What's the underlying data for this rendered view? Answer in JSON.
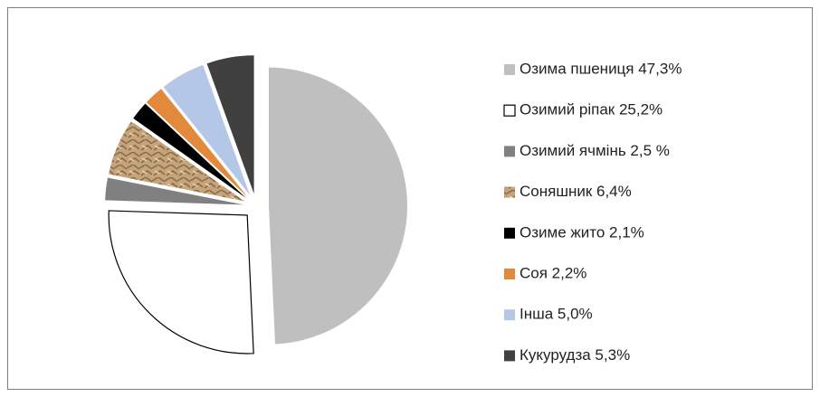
{
  "chart_data": {
    "type": "pie",
    "categories": [
      "Озима пшениця  47,3%",
      "Озимий ріпак  25,2%",
      "Озимий ячмінь 2,5 %",
      "Соняшник 6,4%",
      "Озиме жито  2,1%",
      "Соя 2,2%",
      "Інша 5,0%",
      "Кукурудза 5,3%"
    ],
    "values": [
      47.3,
      25.2,
      2.5,
      6.4,
      2.1,
      2.2,
      5.0,
      5.3
    ],
    "colors": [
      "#bfbfbf",
      "#ffffff",
      "#808080",
      "#c4a47c",
      "#000000",
      "#e2893b",
      "#b4c7e7",
      "#404040"
    ],
    "legend": "right"
  }
}
